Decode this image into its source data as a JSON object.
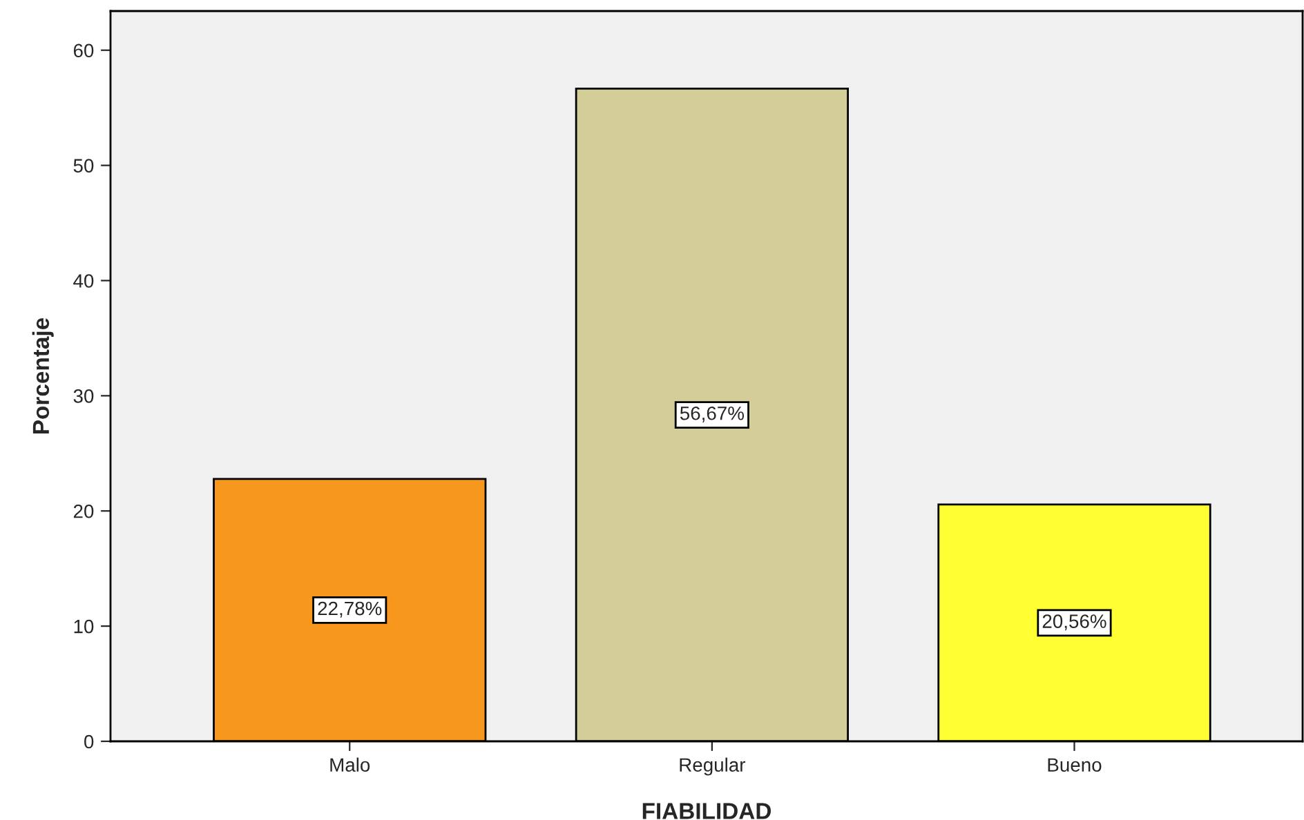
{
  "chart_data": {
    "type": "bar",
    "xlabel": "FIABILIDAD",
    "ylabel": "Porcentaje",
    "categories": [
      "Malo",
      "Regular",
      "Bueno"
    ],
    "values": [
      22.78,
      56.67,
      20.56
    ],
    "colors": [
      "#f7971e",
      "#d3ce98",
      "#ffff33"
    ],
    "value_labels": [
      "22,78%",
      "56,67%",
      "20,56%"
    ],
    "ylim": [
      0,
      63.4
    ],
    "yticks": [
      0,
      10,
      20,
      30,
      40,
      50,
      60
    ],
    "grid": false,
    "legend": false
  }
}
